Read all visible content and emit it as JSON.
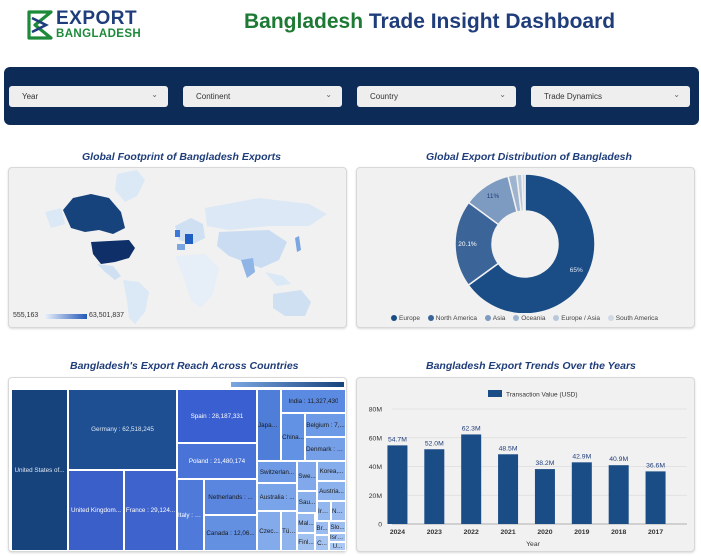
{
  "header": {
    "logo_export": "EXPORT",
    "logo_bangladesh": "BANGLADESH",
    "title_green": "Bangladesh",
    "title_rest": " Trade Insight Dashboard"
  },
  "filters": [
    {
      "label": "Year"
    },
    {
      "label": "Continent"
    },
    {
      "label": "Country"
    },
    {
      "label": "Trade Dynamics"
    }
  ],
  "map_panel": {
    "title": "Global Footprint of Bangladesh Exports",
    "scale_min": "555,163",
    "scale_max": "63,501,837"
  },
  "donut_panel": {
    "title": "Global Export Distribution of Bangladesh",
    "legend": [
      {
        "label": "Europe",
        "color": "#1a4c86"
      },
      {
        "label": "North America",
        "color": "#3b6498"
      },
      {
        "label": "Asia",
        "color": "#7d9ac0"
      },
      {
        "label": "Oceania",
        "color": "#9fb4cf"
      },
      {
        "label": "Europe / Asia",
        "color": "#b8c7da"
      },
      {
        "label": "South America",
        "color": "#d0d9e5"
      }
    ]
  },
  "treemap_panel": {
    "title": "Bangladesh's Export Reach Across Countries",
    "cells": {
      "usa": "United States of...",
      "germany": "Germany : 62,518,245",
      "uk": "United Kingdom...",
      "france": "France : 29,124...",
      "spain": "Spain : 28,187,331",
      "poland": "Poland : 21,480,174",
      "italy": "Italy : 1...",
      "netherlands": "Netherlands : ...",
      "canada": "Canada : 12,06...",
      "japan": "Japan...",
      "switzerland": "Switzerlan...",
      "czech": "Czec...",
      "india": "India : 11,327,430",
      "china": "China...",
      "belgium": "Belgium : 7,...",
      "denmark": "Denmark : 7...",
      "korea": "Korea,...",
      "sweden": "Swe...",
      "australia": "Australia : ...",
      "austria": "Austria...",
      "saudi": "Sau...",
      "ireland": "Ire...",
      "norway": "No...",
      "turkey": "Tür...",
      "malaysia": "Mal...",
      "brazil": "Br...",
      "slovakia": "Slo...",
      "israel": "Isra...",
      "finland": "Finl...",
      "chile": "C...",
      "us2": "U..."
    }
  },
  "chart_data": [
    {
      "type": "pie",
      "title": "Global Export Distribution of Bangladesh",
      "categories": [
        "Europe",
        "North America",
        "Asia",
        "Oceania",
        "Europe / Asia",
        "South America"
      ],
      "values": [
        65,
        20.1,
        11,
        2,
        1.2,
        0.7
      ],
      "labels": [
        "65%",
        "20.1%",
        "11%",
        "",
        "",
        ""
      ],
      "legend": "bottom"
    },
    {
      "type": "bar",
      "title": "Bangladesh Export Trends Over the Years",
      "categories": [
        "2024",
        "2023",
        "2022",
        "2021",
        "2020",
        "2019",
        "2018",
        "2017"
      ],
      "series": [
        {
          "name": "Transaction Value (USD)",
          "values": [
            54.7,
            52.0,
            62.3,
            48.5,
            38.2,
            42.9,
            40.9,
            36.6
          ]
        }
      ],
      "data_labels": [
        "54.7M",
        "52.0M",
        "62.3M",
        "48.5M",
        "38.2M",
        "42.9M",
        "40.9M",
        "36.6M"
      ],
      "y_ticks": [
        "0",
        "20M",
        "40M",
        "60M",
        "80M"
      ],
      "ylim": [
        0,
        80
      ],
      "xlabel": "Year",
      "ylabel": "",
      "legend": "top",
      "color": "#1a4c86"
    }
  ]
}
